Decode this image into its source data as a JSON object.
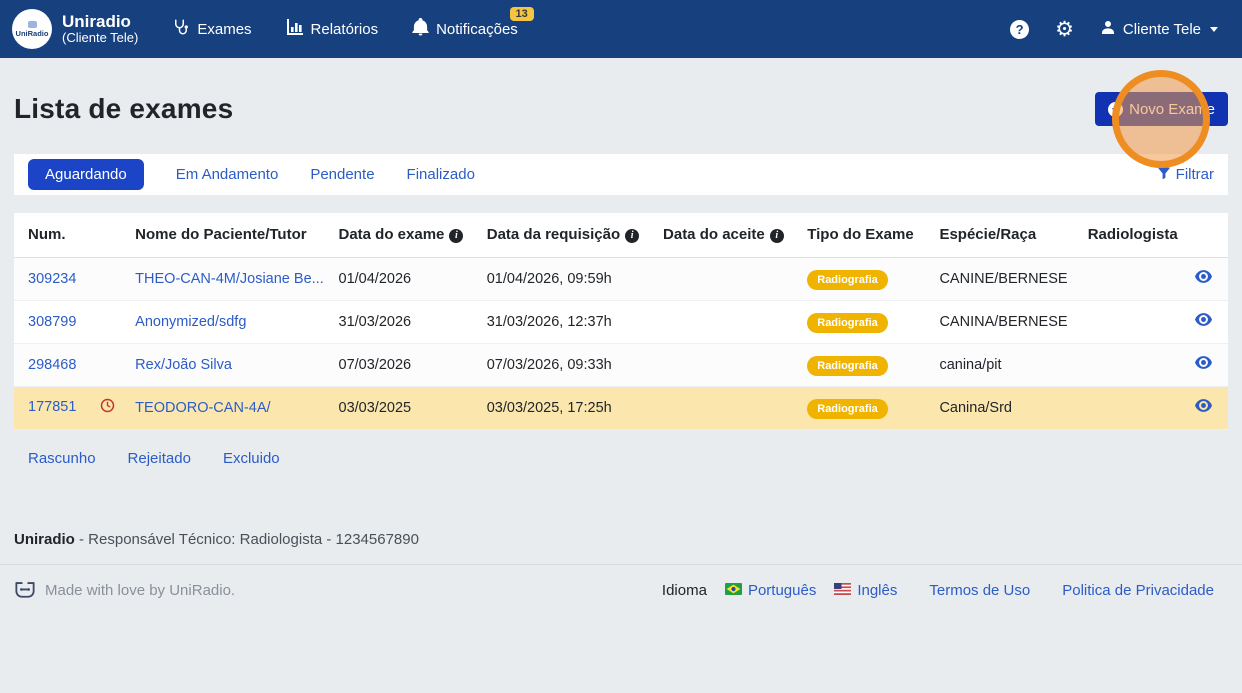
{
  "navbar": {
    "brand": {
      "logo_text": "UniRadio",
      "title": "Uniradio",
      "subtitle": "(Cliente Tele)"
    },
    "items": [
      {
        "label": "Exames",
        "icon": "stethoscope-icon"
      },
      {
        "label": "Relatórios",
        "icon": "bar-chart-icon"
      },
      {
        "label": "Notificações",
        "icon": "bell-icon",
        "badge": "13"
      }
    ],
    "user": {
      "name": "Cliente Tele"
    }
  },
  "page": {
    "title": "Lista de exames",
    "new_exam_label": "Novo Exame"
  },
  "tabs": {
    "items": [
      "Aguardando",
      "Em Andamento",
      "Pendente",
      "Finalizado"
    ],
    "active_index": 0,
    "filter_label": "Filtrar"
  },
  "table": {
    "columns": [
      {
        "label": "Num.",
        "info": false
      },
      {
        "label": "Nome do Paciente/Tutor",
        "info": false
      },
      {
        "label": "Data do exame",
        "info": true
      },
      {
        "label": "Data da requisição",
        "info": true
      },
      {
        "label": "Data do aceite",
        "info": true
      },
      {
        "label": "Tipo do Exame",
        "info": false
      },
      {
        "label": "Espécie/Raça",
        "info": false
      },
      {
        "label": "Radiologista",
        "info": false
      }
    ],
    "rows": [
      {
        "num": "309234",
        "alert": false,
        "name": "THEO-CAN-4M/Josiane Be...",
        "exam_date": "01/04/2026",
        "request_date": "01/04/2026, 09:59h",
        "accept_date": "",
        "exam_type": "Radiografia",
        "species": "CANINE/BERNESE",
        "highlight": false
      },
      {
        "num": "308799",
        "alert": false,
        "name": "Anonymized/sdfg",
        "exam_date": "31/03/2026",
        "request_date": "31/03/2026, 12:37h",
        "accept_date": "",
        "exam_type": "Radiografia",
        "species": "CANINA/BERNESE",
        "highlight": false
      },
      {
        "num": "298468",
        "alert": false,
        "name": "Rex/João Silva",
        "exam_date": "07/03/2026",
        "request_date": "07/03/2026, 09:33h",
        "accept_date": "",
        "exam_type": "Radiografia",
        "species": "canina/pit",
        "highlight": false
      },
      {
        "num": "177851",
        "alert": true,
        "name": "TEODORO-CAN-4A/",
        "exam_date": "03/03/2025",
        "request_date": "03/03/2025, 17:25h",
        "accept_date": "",
        "exam_type": "Radiografia",
        "species": "Canina/Srd",
        "highlight": true
      }
    ]
  },
  "status_links": [
    "Rascunho",
    "Rejeitado",
    "Excluido"
  ],
  "footer": {
    "responsible": {
      "brand": "Uniradio",
      "text": " - Responsável Técnico: Radiologista - 1234567890"
    },
    "made_with": "Made with love by UniRadio.",
    "language": {
      "label": "Idioma",
      "options": [
        {
          "label": "Português",
          "flag": "brazil-flag"
        },
        {
          "label": "Inglês",
          "flag": "usa-flag"
        }
      ]
    },
    "links": [
      "Termos de Uso",
      "Politica de Privacidade"
    ]
  },
  "colors": {
    "navbar_bg": "#17407e",
    "active_tab_blue": "#1b45c6",
    "button_blue": "#1133b2",
    "link_blue": "#2b5cc8",
    "badge_yellow": "#f0b400",
    "notification_badge_yellow": "#f5c542",
    "row_highlight_yellow": "#fbe7ae",
    "page_bg": "#e9ecef",
    "alert_red": "#c0392b",
    "annotation_circle_orange": "#ee8e22"
  }
}
